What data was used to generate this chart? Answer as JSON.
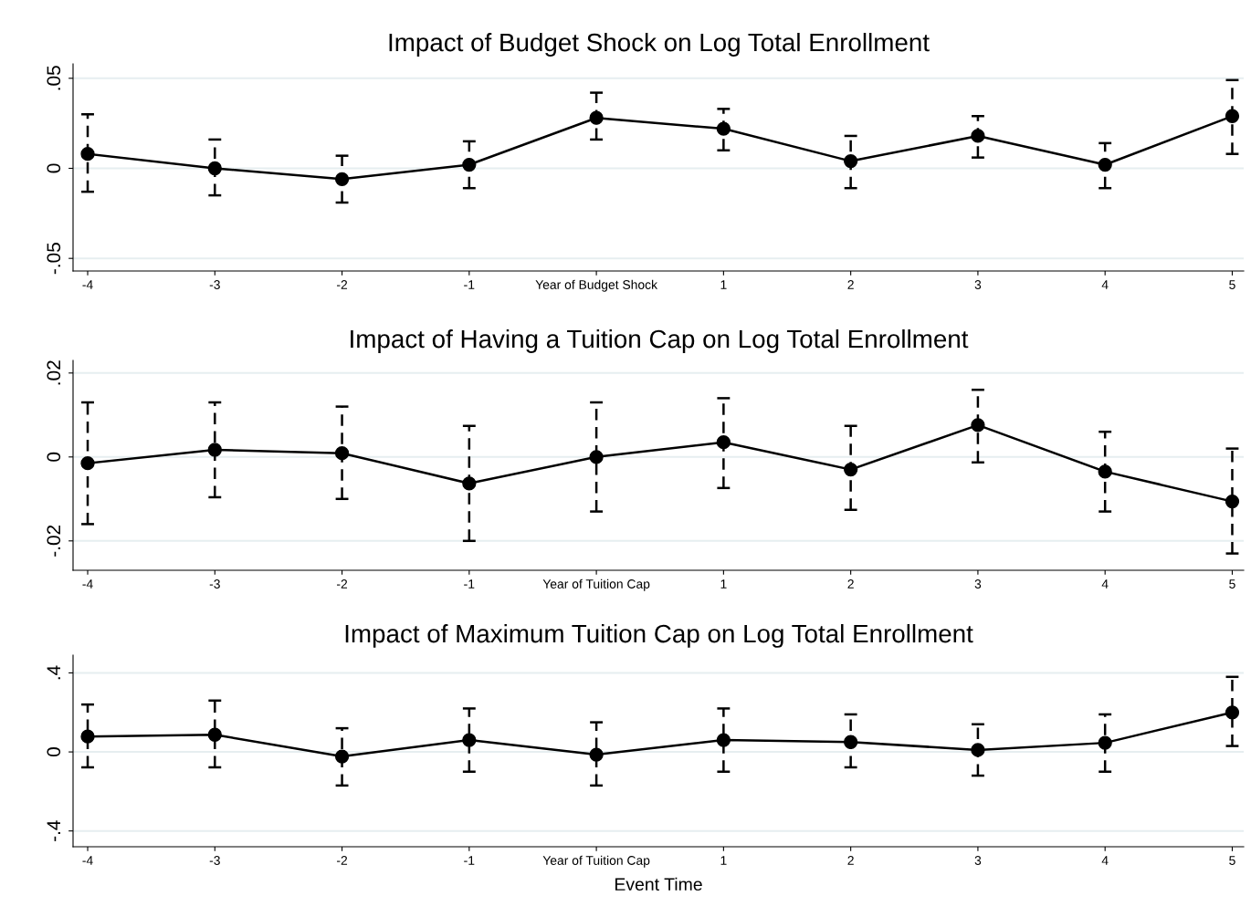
{
  "chart_data": [
    {
      "type": "line",
      "title": "Impact of Budget Shock on Log Total Enrollment",
      "categories": [
        "-4",
        "-3",
        "-2",
        "-1",
        "Year of Budget Shock",
        "1",
        "2",
        "3",
        "4",
        "5"
      ],
      "series": [
        {
          "color": "#000000",
          "values": [
            0.008,
            0.0,
            -0.006,
            0.002,
            0.028,
            0.022,
            0.004,
            0.018,
            0.002,
            0.029
          ],
          "errors": [
            [
              -0.013,
              0.03
            ],
            [
              -0.015,
              0.016
            ],
            [
              -0.019,
              0.007
            ],
            [
              -0.011,
              0.015
            ],
            [
              0.016,
              0.042
            ],
            [
              0.01,
              0.033
            ],
            [
              -0.011,
              0.018
            ],
            [
              0.006,
              0.029
            ],
            [
              -0.011,
              0.014
            ],
            [
              0.008,
              0.049
            ]
          ]
        }
      ],
      "ylim": [
        -0.057,
        0.058
      ],
      "yticks": [
        {
          "value": -0.05,
          "label": "-.05"
        },
        0,
        {
          "value": 0.05,
          "label": ".05"
        }
      ],
      "grid": "y",
      "marker": "circle",
      "line_style": "solid"
    },
    {
      "type": "line",
      "title": "Impact of Having a Tuition Cap on Log Total Enrollment",
      "categories": [
        "-4",
        "-3",
        "-2",
        "-1",
        "Year of Tuition Cap",
        "1",
        "2",
        "3",
        "4",
        "5"
      ],
      "series": [
        {
          "color": "#000000",
          "values": [
            -0.0015,
            0.0017,
            0.0009,
            -0.0063,
            0.0,
            0.0035,
            -0.003,
            0.0076,
            -0.0035,
            -0.0106
          ],
          "errors": [
            [
              -0.016,
              0.013
            ],
            [
              -0.0096,
              0.013
            ],
            [
              -0.01,
              0.012
            ],
            [
              -0.02,
              0.0074
            ],
            [
              -0.013,
              0.013
            ],
            [
              -0.0074,
              0.014
            ],
            [
              -0.0126,
              0.0074
            ],
            [
              -0.0013,
              0.016
            ],
            [
              -0.013,
              0.006
            ],
            [
              -0.023,
              0.002
            ]
          ]
        }
      ],
      "ylim": [
        -0.027,
        0.023
      ],
      "yticks": [
        {
          "value": -0.02,
          "label": "-.02"
        },
        0,
        {
          "value": 0.02,
          "label": ".02"
        }
      ],
      "grid": "y",
      "marker": "circle",
      "line_style": "solid"
    },
    {
      "type": "line",
      "title": "Impact of Maximum Tuition Cap on Log Total Enrollment",
      "xlabel": "Event Time",
      "categories": [
        "-4",
        "-3",
        "-2",
        "-1",
        "Year of Tuition Cap",
        "1",
        "2",
        "3",
        "4",
        "5"
      ],
      "series": [
        {
          "color": "#000000",
          "values": [
            0.078,
            0.087,
            -0.023,
            0.06,
            -0.014,
            0.06,
            0.05,
            0.01,
            0.046,
            0.2
          ],
          "errors": [
            [
              -0.078,
              0.24
            ],
            [
              -0.078,
              0.26
            ],
            [
              -0.17,
              0.12
            ],
            [
              -0.1,
              0.22
            ],
            [
              -0.17,
              0.15
            ],
            [
              -0.1,
              0.22
            ],
            [
              -0.078,
              0.19
            ],
            [
              -0.12,
              0.14
            ],
            [
              -0.1,
              0.19
            ],
            [
              0.03,
              0.38
            ]
          ]
        }
      ],
      "ylim": [
        -0.48,
        0.49
      ],
      "yticks": [
        {
          "value": -0.4,
          "label": "-.4"
        },
        0,
        {
          "value": 0.4,
          "label": ".4"
        }
      ],
      "grid": "y",
      "marker": "circle",
      "line_style": "solid"
    }
  ]
}
